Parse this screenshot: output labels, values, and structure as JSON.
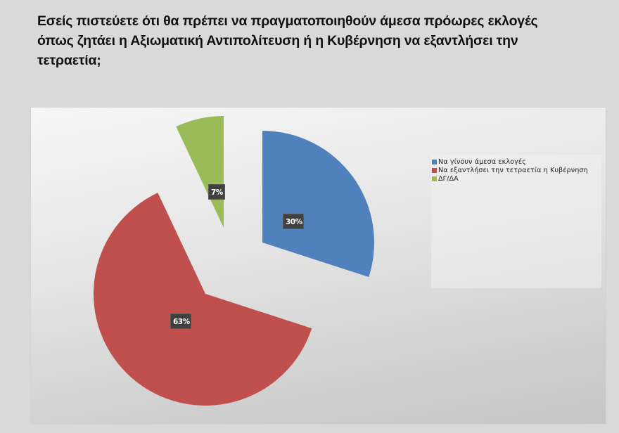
{
  "header": {
    "title_lines": [
      "Εσείς πιστεύετε ότι θα πρέπει να πραγματοποιηθούν άμεσα πρόωρες εκλογές",
      "όπως ζητάει η Αξιωματική Αντιπολίτευση ή η Κυβέρνηση να εξαντλήσει την",
      "τετραετία;"
    ]
  },
  "colors": {
    "page_background": "#d9d9d9",
    "label_background": "#404040",
    "blue": "#4f81bd",
    "red": "#c0504d",
    "green": "#9bbb59"
  },
  "chart_data": {
    "type": "pie",
    "title": "Εσείς πιστεύετε ότι θα πρέπει να πραγματοποιηθούν άμεσα πρόωρες εκλογές όπως ζητάει η Αξιωματική Αντιπολίτευση ή η Κυβέρνηση να εξαντλήσει την τετραετία;",
    "categories": [
      "Να γίνουν άμεσα εκλογές",
      "Να εξαντλήσει την τετραετία η Κυβέρνηση",
      "ΔΓ/ΔΑ"
    ],
    "values": [
      30,
      63,
      7
    ],
    "value_labels": [
      "30%",
      "63%",
      "7%"
    ],
    "colors": [
      "#4f81bd",
      "#c0504d",
      "#9bbb59"
    ],
    "exploded": true,
    "start_angle_deg": 0,
    "direction": "clockwise",
    "legend_position": "right",
    "xlabel": "",
    "ylabel": ""
  },
  "legend": {
    "items": [
      {
        "label": "Να γίνουν άμεσα εκλογές",
        "color": "#4f81bd"
      },
      {
        "label": "Να εξαντλήσει την τετραετία η Κυβέρνηση",
        "color": "#c0504d"
      },
      {
        "label": "ΔΓ/ΔΑ",
        "color": "#9bbb59"
      }
    ]
  }
}
